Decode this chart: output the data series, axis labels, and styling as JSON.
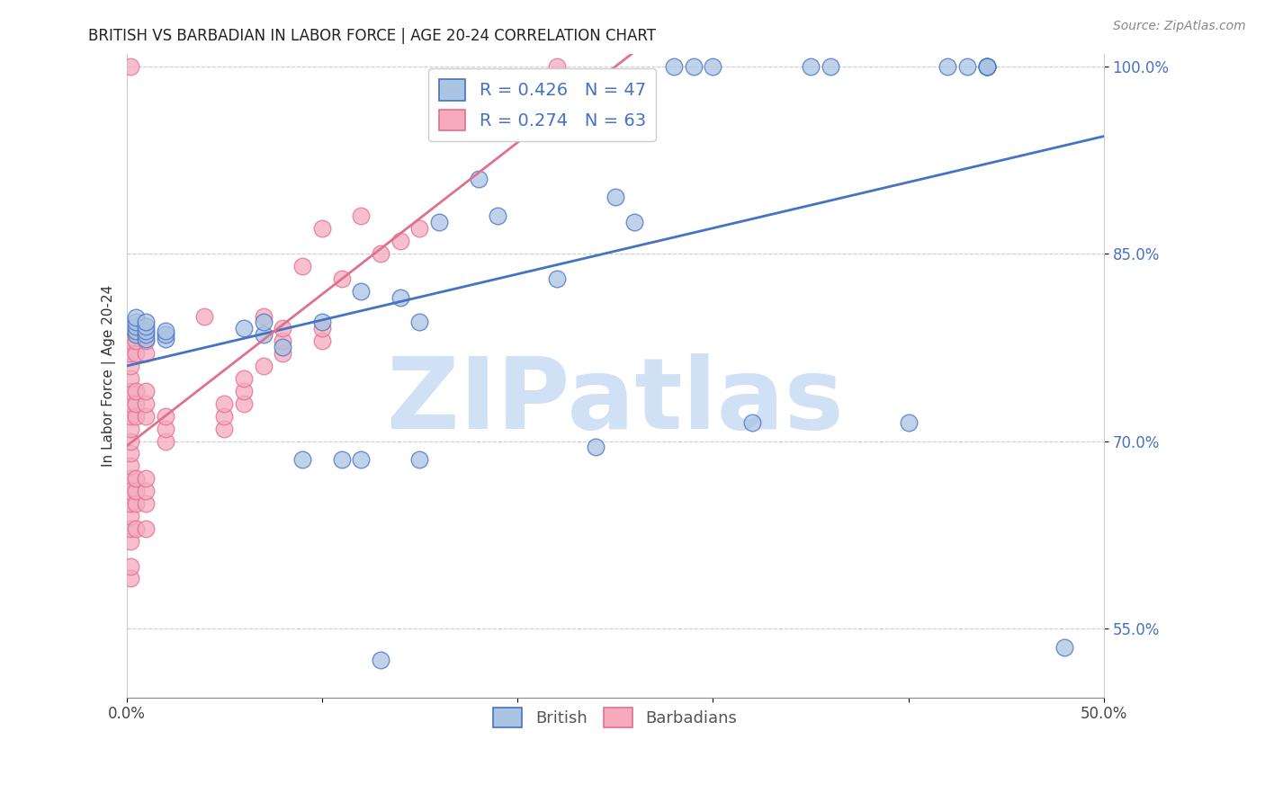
{
  "title": "BRITISH VS BARBADIAN IN LABOR FORCE | AGE 20-24 CORRELATION CHART",
  "source": "Source: ZipAtlas.com",
  "ylabel": "In Labor Force | Age 20-24",
  "xlim": [
    0.0,
    0.5
  ],
  "ylim": [
    0.495,
    1.01
  ],
  "xticks": [
    0.0,
    0.1,
    0.2,
    0.3,
    0.4,
    0.5
  ],
  "xtick_labels": [
    "0.0%",
    "",
    "",
    "",
    "",
    "50.0%"
  ],
  "yticks": [
    0.55,
    0.7,
    0.85,
    1.0
  ],
  "ytick_labels": [
    "55.0%",
    "70.0%",
    "85.0%",
    "100.0%"
  ],
  "british_color": "#aac4e2",
  "barbadian_color": "#f5aabe",
  "british_line_color": "#4472c4",
  "barbadian_line_color": "#e07090",
  "british_R": 0.426,
  "british_N": 47,
  "barbadian_R": 0.274,
  "barbadian_N": 63,
  "watermark": "ZIPatlas",
  "watermark_color": "#d0e0f5",
  "grid_color": "#cccccc",
  "british_x": [
    0.005,
    0.005,
    0.005,
    0.005,
    0.005,
    0.01,
    0.01,
    0.01,
    0.01,
    0.01,
    0.02,
    0.02,
    0.02,
    0.06,
    0.07,
    0.07,
    0.08,
    0.09,
    0.1,
    0.11,
    0.12,
    0.12,
    0.13,
    0.14,
    0.15,
    0.15,
    0.16,
    0.18,
    0.19,
    0.22,
    0.24,
    0.25,
    0.26,
    0.28,
    0.29,
    0.3,
    0.32,
    0.35,
    0.36,
    0.4,
    0.42,
    0.43,
    0.44,
    0.44,
    0.44,
    0.44,
    0.48
  ],
  "british_y": [
    0.785,
    0.788,
    0.792,
    0.795,
    0.799,
    0.782,
    0.785,
    0.788,
    0.792,
    0.795,
    0.782,
    0.785,
    0.788,
    0.79,
    0.785,
    0.795,
    0.775,
    0.685,
    0.795,
    0.685,
    0.685,
    0.82,
    0.525,
    0.815,
    0.685,
    0.795,
    0.875,
    0.91,
    0.88,
    0.83,
    0.695,
    0.895,
    0.875,
    1.0,
    1.0,
    1.0,
    0.715,
    1.0,
    1.0,
    0.715,
    1.0,
    1.0,
    1.0,
    1.0,
    1.0,
    1.0,
    0.535
  ],
  "barbadian_x": [
    0.002,
    0.002,
    0.002,
    0.002,
    0.002,
    0.002,
    0.002,
    0.002,
    0.002,
    0.002,
    0.002,
    0.002,
    0.002,
    0.002,
    0.002,
    0.002,
    0.002,
    0.002,
    0.002,
    0.002,
    0.005,
    0.005,
    0.005,
    0.005,
    0.005,
    0.005,
    0.005,
    0.005,
    0.005,
    0.01,
    0.01,
    0.01,
    0.01,
    0.01,
    0.01,
    0.01,
    0.01,
    0.01,
    0.02,
    0.02,
    0.02,
    0.04,
    0.05,
    0.05,
    0.05,
    0.06,
    0.06,
    0.06,
    0.07,
    0.07,
    0.08,
    0.08,
    0.08,
    0.09,
    0.1,
    0.1,
    0.1,
    0.11,
    0.12,
    0.13,
    0.14,
    0.15,
    0.22
  ],
  "barbadian_y": [
    0.67,
    0.68,
    0.69,
    0.7,
    0.71,
    0.72,
    0.73,
    0.74,
    0.75,
    0.76,
    0.77,
    0.78,
    0.59,
    0.6,
    0.62,
    0.63,
    0.64,
    0.65,
    0.66,
    1.0,
    0.63,
    0.65,
    0.66,
    0.67,
    0.72,
    0.73,
    0.74,
    0.77,
    0.78,
    0.63,
    0.65,
    0.66,
    0.67,
    0.72,
    0.73,
    0.74,
    0.77,
    0.78,
    0.7,
    0.71,
    0.72,
    0.8,
    0.71,
    0.72,
    0.73,
    0.73,
    0.74,
    0.75,
    0.76,
    0.8,
    0.77,
    0.78,
    0.79,
    0.84,
    0.78,
    0.79,
    0.87,
    0.83,
    0.88,
    0.85,
    0.86,
    0.87,
    1.0
  ]
}
